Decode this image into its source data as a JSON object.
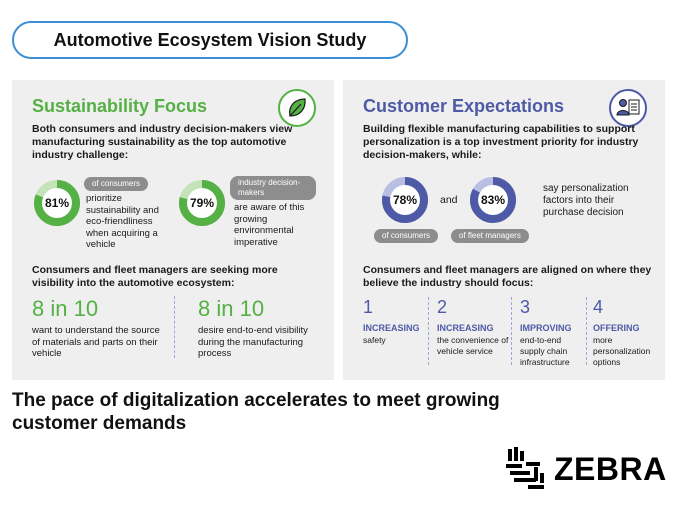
{
  "title": "Automotive Ecosystem Vision Study",
  "left_panel": {
    "title": "Sustainability Focus",
    "icon": "leaf-icon",
    "intro": "Both consumers and industry decision-makers view manufacturing sustainability as the top automotive industry challenge:",
    "stat1": {
      "value": "81%",
      "fraction": 0.81,
      "tag": "of consumers",
      "desc": "prioritize sustainability and eco-friendliness when acquiring a vehicle"
    },
    "stat2": {
      "value": "79%",
      "fraction": 0.79,
      "tag": "industry decision-makers",
      "desc": "are aware of this growing environmental imperative"
    },
    "visibility_head": "Consumers and fleet managers are seeking more visibility into the automotive ecosystem:",
    "big1": {
      "value": "8 in 10",
      "desc": "want to understand the source of materials and parts on their vehicle"
    },
    "big2": {
      "value": "8 in 10",
      "desc": "desire end-to-end visibility during the manufacturing process"
    }
  },
  "right_panel": {
    "title": "Customer Expectations",
    "icon": "person-checklist-icon",
    "intro": "Building flexible manufacturing capabilities to support personalization is a top investment priority for industry decision-makers, while:",
    "stat1": {
      "value": "78%",
      "fraction": 0.78,
      "tag": "of consumers"
    },
    "connector": "and",
    "stat2": {
      "value": "83%",
      "fraction": 0.83,
      "tag": "of fleet managers"
    },
    "stat_desc": "say personalization factors into their purchase decision",
    "focus_head": "Consumers and fleet managers are aligned on where they believe the industry should focus:",
    "focus": [
      {
        "num": "1",
        "head": "INCREASING",
        "desc": "safety"
      },
      {
        "num": "2",
        "head": "INCREASING",
        "desc": "the convenience of vehicle service"
      },
      {
        "num": "3",
        "head": "IMPROVING",
        "desc": "end-to-end supply chain infrastructure"
      },
      {
        "num": "4",
        "head": "OFFERING",
        "desc": "more personalization options"
      }
    ]
  },
  "headline": "The pace of digitalization accelerates to meet growing customer demands",
  "logo": {
    "text": "ZEBRA",
    "icon": "zebra-head-icon"
  },
  "colors": {
    "green": "#55b045",
    "green_light": "#c5e3b8",
    "purple": "#4e5aa6",
    "purple_light": "#b9bfe3",
    "tag_gray": "#8d8d8d"
  }
}
